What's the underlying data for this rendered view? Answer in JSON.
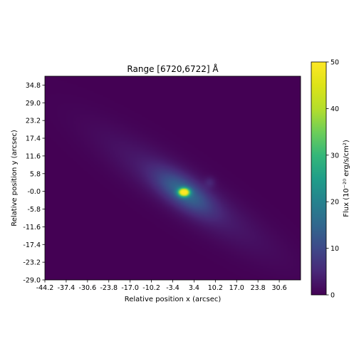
{
  "chart_data": {
    "type": "heatmap",
    "title": "Range [6720,6722] Å",
    "xlabel": "Relative position x (arcsec)",
    "ylabel": "Relative position y (arcsec)",
    "x_ticks": [
      -44.2,
      -37.4,
      -30.6,
      -23.8,
      -17.0,
      -10.2,
      -3.4,
      3.4,
      10.2,
      17.0,
      23.8,
      30.6
    ],
    "x_tick_labels": [
      "-44.2",
      "-37.4",
      "-30.6",
      "-23.8",
      "-17.0",
      "-10.2",
      "-3.4",
      "3.4",
      "10.2",
      "17.0",
      "23.8",
      "30.6"
    ],
    "y_ticks": [
      -29.0,
      -23.2,
      -17.4,
      -11.6,
      -5.8,
      0.0,
      5.8,
      11.6,
      17.4,
      23.2,
      29.0,
      34.8
    ],
    "y_tick_labels": [
      "-29.0",
      "-23.2",
      "-17.4",
      "-11.6",
      "-5.8",
      "-0.0",
      "5.8",
      "11.6",
      "17.4",
      "23.2",
      "29.0",
      "34.8"
    ],
    "xlim": [
      -44.2,
      37.4
    ],
    "ylim": [
      -29.0,
      37.7
    ],
    "grid": false,
    "colormap": "viridis",
    "colorbar": {
      "label": "Flux (10⁻²⁰ erg/s/cm²)",
      "range": [
        0,
        50
      ],
      "ticks": [
        0,
        10,
        20,
        30,
        40,
        50
      ],
      "tick_labels": [
        "0",
        "10",
        "20",
        "30",
        "40",
        "50"
      ]
    },
    "background_flux": 0,
    "features": [
      {
        "name": "galaxy-disk",
        "center": [
          0.2,
          -0.3
        ],
        "major_axis_deg": 35,
        "semi_major": 22,
        "semi_minor": 5,
        "peak_flux": 4
      },
      {
        "name": "galaxy-bulge",
        "center": [
          0.2,
          -0.3
        ],
        "major_axis_deg": 35,
        "semi_major": 7,
        "semi_minor": 3,
        "peak_flux": 12
      },
      {
        "name": "nucleus",
        "center": [
          0.2,
          -0.3
        ],
        "semi_major": 1.2,
        "semi_minor": 0.9,
        "peak_flux": 50
      },
      {
        "name": "compact-source",
        "center": [
          8.5,
          3.0
        ],
        "semi_major": 1.2,
        "semi_minor": 1.2,
        "peak_flux": 3
      }
    ]
  }
}
